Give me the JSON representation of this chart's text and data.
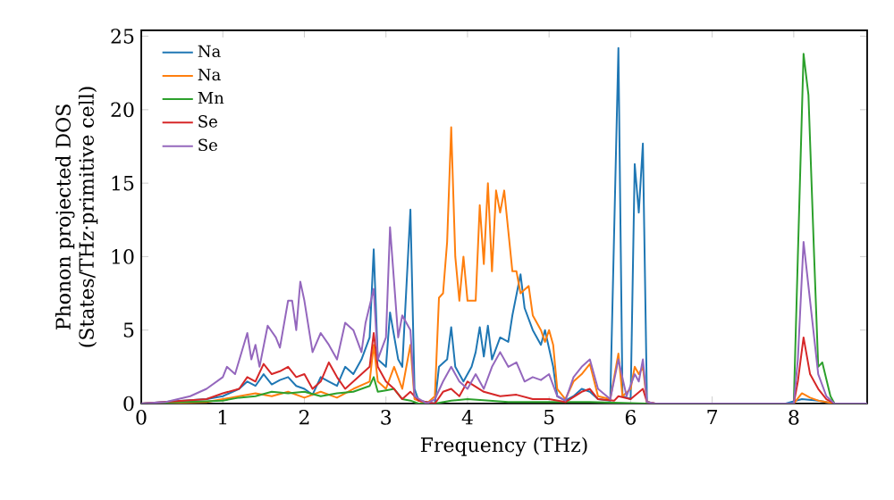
{
  "chart_data": {
    "type": "line",
    "xlabel": "Frequency (THz)",
    "ylabel": "Phonon projected DOS\n(States/THz·primitive cell)",
    "xlim": [
      0,
      8.9
    ],
    "ylim": [
      0,
      25.4
    ],
    "xticks": [
      0,
      1,
      2,
      3,
      4,
      5,
      6,
      7,
      8
    ],
    "yticks": [
      0,
      5,
      10,
      15,
      20,
      25
    ],
    "grid": false,
    "legend": "top left",
    "marker": "none",
    "line_style": "solid",
    "series": [
      {
        "name": "Na",
        "color": "#1f77b4",
        "x": [
          0,
          0.8,
          1.0,
          1.2,
          1.3,
          1.4,
          1.5,
          1.6,
          1.7,
          1.8,
          1.9,
          2.0,
          2.1,
          2.2,
          2.3,
          2.4,
          2.5,
          2.6,
          2.7,
          2.8,
          2.85,
          2.9,
          3.0,
          3.05,
          3.15,
          3.2,
          3.3,
          3.35,
          3.4,
          3.6,
          3.65,
          3.75,
          3.8,
          3.85,
          3.95,
          4.05,
          4.1,
          4.15,
          4.2,
          4.25,
          4.3,
          4.4,
          4.5,
          4.55,
          4.65,
          4.7,
          4.8,
          4.9,
          4.95,
          5.05,
          5.1,
          5.2,
          5.3,
          5.4,
          5.5,
          5.6,
          5.75,
          5.85,
          5.9,
          6.0,
          6.05,
          6.1,
          6.15,
          6.2,
          6.3,
          7.9,
          8.1,
          8.3,
          8.5,
          8.9
        ],
        "values": [
          0,
          0.3,
          0.5,
          1.0,
          1.5,
          1.2,
          2.0,
          1.3,
          1.6,
          1.8,
          1.2,
          1.0,
          0.6,
          1.8,
          1.5,
          1.2,
          2.5,
          2.0,
          3.0,
          4.5,
          10.5,
          3.0,
          2.5,
          6.2,
          3.0,
          2.5,
          13.2,
          1.0,
          0.2,
          0,
          2.5,
          3.0,
          5.2,
          2.5,
          1.5,
          2.5,
          3.5,
          5.2,
          3.2,
          5.3,
          3.0,
          4.5,
          4.2,
          6.0,
          8.8,
          6.5,
          5.0,
          4.0,
          5.0,
          2.5,
          0.5,
          0.2,
          0.5,
          1.0,
          0.8,
          0.3,
          0.2,
          24.2,
          0.5,
          0.3,
          16.3,
          13.0,
          17.7,
          0.1,
          0,
          0,
          0.3,
          0.2,
          0,
          0
        ]
      },
      {
        "name": "Na",
        "color": "#ff7f0e",
        "x": [
          0,
          0.8,
          1.0,
          1.2,
          1.4,
          1.6,
          1.8,
          2.0,
          2.2,
          2.4,
          2.6,
          2.8,
          2.85,
          2.9,
          3.0,
          3.1,
          3.2,
          3.3,
          3.35,
          3.5,
          3.6,
          3.65,
          3.7,
          3.75,
          3.8,
          3.85,
          3.9,
          3.95,
          4.0,
          4.1,
          4.15,
          4.2,
          4.25,
          4.3,
          4.35,
          4.4,
          4.45,
          4.55,
          4.6,
          4.65,
          4.75,
          4.8,
          4.9,
          4.95,
          5.0,
          5.05,
          5.1,
          5.2,
          5.3,
          5.4,
          5.5,
          5.6,
          5.75,
          5.85,
          5.9,
          6.0,
          6.05,
          6.1,
          6.15,
          6.2,
          6.3,
          8.0,
          8.1,
          8.2,
          8.3,
          8.5,
          8.9
        ],
        "values": [
          0,
          0.1,
          0.3,
          0.5,
          0.7,
          0.5,
          0.8,
          0.4,
          0.8,
          0.4,
          1.0,
          1.5,
          4.0,
          1.5,
          1.0,
          2.5,
          1.0,
          4.0,
          0.3,
          0,
          0.5,
          7.2,
          7.5,
          11.0,
          18.8,
          10.0,
          7.0,
          10.0,
          7.0,
          7.0,
          13.5,
          9.5,
          15.0,
          9.0,
          14.5,
          13.0,
          14.5,
          9.0,
          9.0,
          7.5,
          8.0,
          6.0,
          5.0,
          4.2,
          5.0,
          4.0,
          1.0,
          0.3,
          1.5,
          2.0,
          2.7,
          0.5,
          0.3,
          3.4,
          0.5,
          1.0,
          2.5,
          2.0,
          2.5,
          0.1,
          0,
          0,
          0.7,
          0.4,
          0.2,
          0,
          0
        ]
      },
      {
        "name": "Mn",
        "color": "#2ca02c",
        "x": [
          0,
          1.0,
          1.2,
          1.4,
          1.6,
          1.8,
          2.0,
          2.2,
          2.4,
          2.6,
          2.8,
          2.85,
          2.9,
          3.0,
          3.1,
          3.2,
          3.3,
          3.4,
          3.6,
          3.8,
          4.0,
          4.5,
          5.0,
          5.5,
          6.2,
          8.0,
          8.05,
          8.12,
          8.18,
          8.25,
          8.3,
          8.35,
          8.45,
          8.5,
          8.9
        ],
        "values": [
          0,
          0.2,
          0.4,
          0.5,
          0.8,
          0.7,
          0.8,
          0.5,
          0.7,
          0.8,
          1.2,
          1.8,
          0.8,
          0.9,
          1.0,
          0.3,
          0.2,
          0,
          0,
          0.2,
          0.3,
          0.1,
          0.1,
          0.1,
          0,
          0,
          10.0,
          23.8,
          21.0,
          10.0,
          2.5,
          2.8,
          0.5,
          0,
          0
        ]
      },
      {
        "name": "Se",
        "color": "#d62728",
        "x": [
          0,
          0.8,
          1.0,
          1.2,
          1.3,
          1.4,
          1.5,
          1.6,
          1.7,
          1.8,
          1.9,
          2.0,
          2.1,
          2.2,
          2.3,
          2.4,
          2.5,
          2.6,
          2.7,
          2.8,
          2.85,
          2.9,
          3.0,
          3.1,
          3.2,
          3.3,
          3.4,
          3.6,
          3.7,
          3.8,
          3.9,
          4.0,
          4.2,
          4.4,
          4.6,
          4.8,
          5.0,
          5.2,
          5.4,
          5.5,
          5.6,
          5.8,
          5.85,
          6.0,
          6.15,
          6.2,
          6.3,
          8.0,
          8.05,
          8.12,
          8.2,
          8.3,
          8.4,
          8.5,
          8.9
        ],
        "values": [
          0,
          0.3,
          0.7,
          1.0,
          1.8,
          1.5,
          2.7,
          2.0,
          2.2,
          2.5,
          1.8,
          2.0,
          1.0,
          1.5,
          2.8,
          1.8,
          1.0,
          1.5,
          2.0,
          2.5,
          4.8,
          2.5,
          1.5,
          1.0,
          0.3,
          0.8,
          0.2,
          0,
          0.8,
          1.0,
          0.5,
          1.5,
          0.8,
          0.5,
          0.6,
          0.3,
          0.3,
          0.1,
          0.8,
          1.0,
          0.3,
          0.2,
          0.5,
          0.3,
          1.0,
          0.1,
          0,
          0,
          1.5,
          4.5,
          2.0,
          1.0,
          0.3,
          0,
          0
        ]
      },
      {
        "name": "Se",
        "color": "#9467bd",
        "x": [
          0,
          0.3,
          0.6,
          0.8,
          1.0,
          1.05,
          1.15,
          1.3,
          1.35,
          1.4,
          1.45,
          1.55,
          1.65,
          1.7,
          1.8,
          1.85,
          1.9,
          1.95,
          2.0,
          2.1,
          2.2,
          2.3,
          2.4,
          2.5,
          2.6,
          2.7,
          2.75,
          2.85,
          2.9,
          3.0,
          3.05,
          3.15,
          3.2,
          3.3,
          3.35,
          3.5,
          3.6,
          3.7,
          3.8,
          3.9,
          4.0,
          4.1,
          4.2,
          4.3,
          4.4,
          4.5,
          4.6,
          4.7,
          4.8,
          4.9,
          5.0,
          5.1,
          5.2,
          5.3,
          5.4,
          5.5,
          5.6,
          5.75,
          5.85,
          5.95,
          6.05,
          6.1,
          6.15,
          6.2,
          6.3,
          8.0,
          8.05,
          8.12,
          8.2,
          8.3,
          8.4,
          8.5,
          8.9
        ],
        "values": [
          0,
          0.1,
          0.5,
          1.0,
          1.8,
          2.5,
          2.0,
          4.8,
          3.0,
          4.0,
          2.5,
          5.3,
          4.5,
          3.8,
          7.0,
          7.0,
          5.0,
          8.3,
          7.0,
          3.5,
          4.8,
          4.0,
          3.0,
          5.5,
          5.0,
          3.5,
          5.5,
          7.8,
          3.0,
          4.5,
          12.0,
          4.5,
          6.0,
          5.0,
          0.5,
          0,
          0.3,
          1.5,
          2.5,
          1.5,
          1.0,
          2.0,
          1.0,
          2.5,
          3.5,
          2.5,
          2.8,
          1.5,
          1.8,
          1.6,
          2.0,
          0.5,
          0.2,
          1.8,
          2.5,
          3.0,
          1.0,
          0.3,
          3.0,
          0.5,
          2.0,
          1.5,
          3.0,
          0.1,
          0,
          0,
          3.0,
          11.0,
          7.0,
          2.0,
          0.5,
          0,
          0
        ]
      }
    ]
  }
}
